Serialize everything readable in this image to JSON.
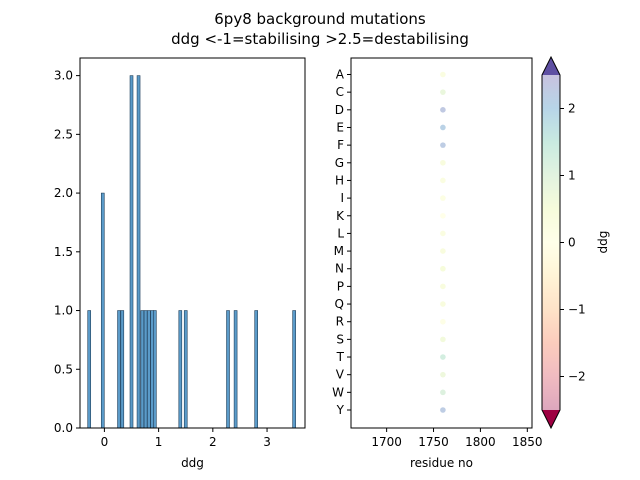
{
  "figure": {
    "title_line1": "6py8 background mutations",
    "title_line2": "ddg <-1=stabilising >2.5=destabilising"
  },
  "chart_data": [
    {
      "type": "bar",
      "xlabel": "ddg",
      "ylabel": "",
      "xlim": [
        -0.45,
        3.7
      ],
      "ylim": [
        0,
        3.15
      ],
      "xticks": [
        0,
        1,
        2,
        3
      ],
      "yticks": [
        0.0,
        0.5,
        1.0,
        1.5,
        2.0,
        2.5,
        3.0
      ],
      "bar_color": "#5b9bc9",
      "bars": [
        {
          "x": -0.28,
          "count": 1
        },
        {
          "x": -0.03,
          "count": 2
        },
        {
          "x": 0.27,
          "count": 1
        },
        {
          "x": 0.33,
          "count": 1
        },
        {
          "x": 0.5,
          "count": 3
        },
        {
          "x": 0.63,
          "count": 3
        },
        {
          "x": 0.7,
          "count": 1
        },
        {
          "x": 0.76,
          "count": 1
        },
        {
          "x": 0.82,
          "count": 1
        },
        {
          "x": 0.88,
          "count": 1
        },
        {
          "x": 0.93,
          "count": 1
        },
        {
          "x": 1.4,
          "count": 1
        },
        {
          "x": 1.5,
          "count": 1
        },
        {
          "x": 2.28,
          "count": 1
        },
        {
          "x": 2.42,
          "count": 1
        },
        {
          "x": 2.8,
          "count": 1
        },
        {
          "x": 3.5,
          "count": 1
        }
      ],
      "bar_width": 0.055
    },
    {
      "type": "scatter",
      "xlabel": "residue no",
      "xlim": [
        1662,
        1855
      ],
      "xticks": [
        1700,
        1750,
        1800,
        1850
      ],
      "categories": [
        "A",
        "C",
        "D",
        "E",
        "F",
        "G",
        "H",
        "I",
        "K",
        "L",
        "M",
        "N",
        "P",
        "Q",
        "R",
        "S",
        "T",
        "V",
        "W",
        "Y"
      ],
      "residue": 1760,
      "points": [
        {
          "aa": "A",
          "ddg": 0.3
        },
        {
          "aa": "C",
          "ddg": 0.8
        },
        {
          "aa": "D",
          "ddg": 2.3
        },
        {
          "aa": "E",
          "ddg": 2.1
        },
        {
          "aa": "F",
          "ddg": 2.2
        },
        {
          "aa": "G",
          "ddg": 0.4
        },
        {
          "aa": "H",
          "ddg": 0.3
        },
        {
          "aa": "I",
          "ddg": 0.2
        },
        {
          "aa": "K",
          "ddg": 0.0
        },
        {
          "aa": "L",
          "ddg": 0.3
        },
        {
          "aa": "M",
          "ddg": 0.4
        },
        {
          "aa": "N",
          "ddg": 0.5
        },
        {
          "aa": "P",
          "ddg": 0.4
        },
        {
          "aa": "Q",
          "ddg": 0.4
        },
        {
          "aa": "R",
          "ddg": 0.1
        },
        {
          "aa": "S",
          "ddg": 0.6
        },
        {
          "aa": "T",
          "ddg": 1.3
        },
        {
          "aa": "V",
          "ddg": 0.7
        },
        {
          "aa": "W",
          "ddg": 1.1
        },
        {
          "aa": "Y",
          "ddg": 2.2
        }
      ]
    },
    {
      "type": "colorbar",
      "label": "ddg",
      "vmin": -2.5,
      "vmax": 2.5,
      "ticks": [
        -2,
        -1,
        0,
        1,
        2
      ],
      "colormap": "Spectral",
      "extend": "both"
    }
  ]
}
